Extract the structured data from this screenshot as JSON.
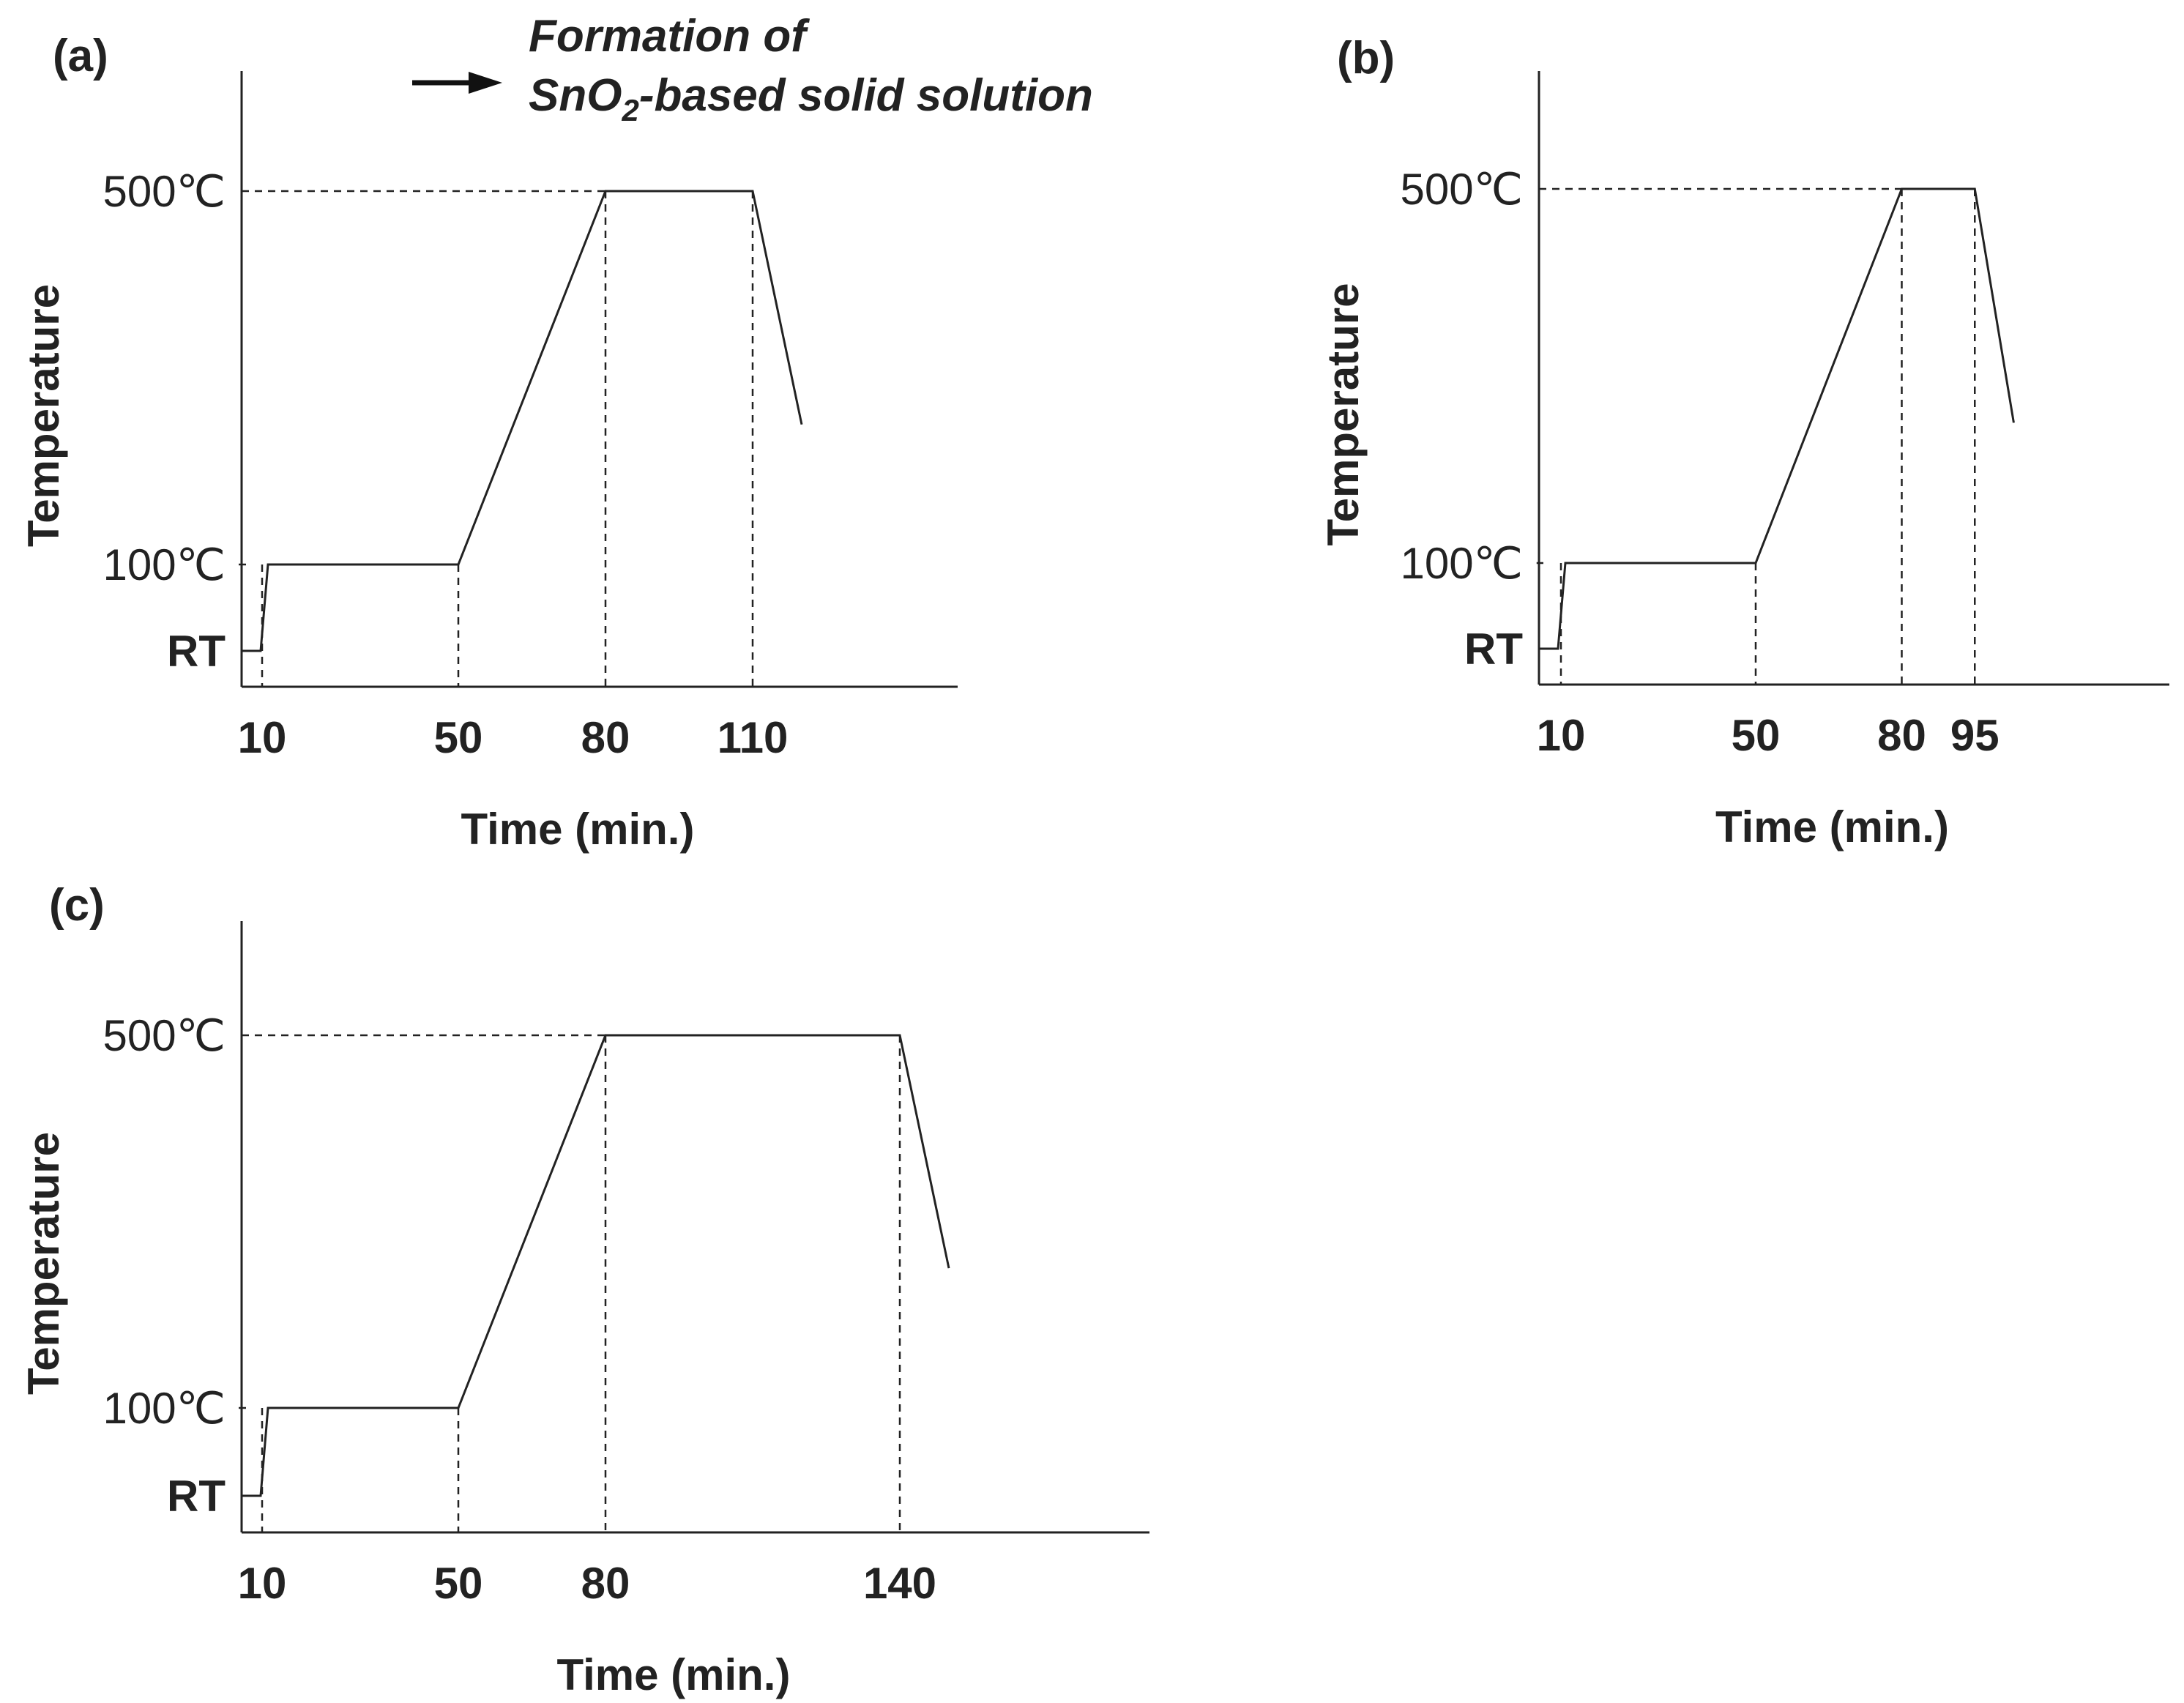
{
  "annotation": {
    "line1": "Formation of",
    "line2_prefix": "SnO",
    "line2_sub": "2",
    "line2_suffix": "-based solid solution"
  },
  "colors": {
    "line": "#222222",
    "background": "#ffffff"
  },
  "chart_data": [
    {
      "panel": "(a)",
      "type": "line",
      "xlabel": "Time (min.)",
      "ylabel": "Temperature",
      "x_ticks": [
        10,
        50,
        80,
        110
      ],
      "x_tick_labels": [
        "10",
        "50",
        "80",
        "110"
      ],
      "y_levels": [
        {
          "label": "500℃",
          "value": 500
        },
        {
          "label": "100℃",
          "value": 100
        },
        {
          "label": "RT",
          "value": 25
        }
      ],
      "xlim": [
        0,
        125
      ],
      "ylim": [
        -10,
        580
      ],
      "series": [
        {
          "x": [
            0,
            4,
            5,
            50,
            80,
            110,
            120
          ],
          "y": [
            25,
            25,
            100,
            100,
            500,
            500,
            250
          ]
        }
      ],
      "dashed_verticals": [
        10,
        50,
        80,
        110
      ],
      "dashed_horizontals": [
        100,
        500
      ]
    },
    {
      "panel": "(b)",
      "type": "line",
      "xlabel": "Time (min.)",
      "ylabel": "Temperature",
      "x_ticks": [
        10,
        50,
        80,
        95
      ],
      "x_tick_labels": [
        "10",
        "50",
        "80",
        "95"
      ],
      "y_levels": [
        {
          "label": "500℃",
          "value": 500
        },
        {
          "label": "100℃",
          "value": 100
        },
        {
          "label": "RT",
          "value": 25
        }
      ],
      "xlim": [
        0,
        110
      ],
      "ylim": [
        -10,
        580
      ],
      "series": [
        {
          "x": [
            0,
            4,
            5,
            50,
            80,
            95,
            103
          ],
          "y": [
            25,
            25,
            100,
            100,
            500,
            500,
            250
          ]
        }
      ],
      "dashed_verticals": [
        10,
        50,
        80,
        95
      ],
      "dashed_horizontals": [
        100,
        500
      ]
    },
    {
      "panel": "(c)",
      "type": "line",
      "xlabel": "Time (min.)",
      "ylabel": "Temperature",
      "x_ticks": [
        10,
        50,
        80,
        140
      ],
      "x_tick_labels": [
        "10",
        "50",
        "80",
        "140"
      ],
      "y_levels": [
        {
          "label": "500℃",
          "value": 500
        },
        {
          "label": "100℃",
          "value": 100
        },
        {
          "label": "RT",
          "value": 25
        }
      ],
      "xlim": [
        0,
        150
      ],
      "ylim": [
        -10,
        580
      ],
      "series": [
        {
          "x": [
            0,
            4,
            5,
            50,
            80,
            140,
            150
          ],
          "y": [
            25,
            25,
            100,
            100,
            500,
            500,
            250
          ]
        }
      ],
      "dashed_verticals": [
        10,
        50,
        80,
        140
      ],
      "dashed_horizontals": [
        100,
        500
      ]
    }
  ]
}
